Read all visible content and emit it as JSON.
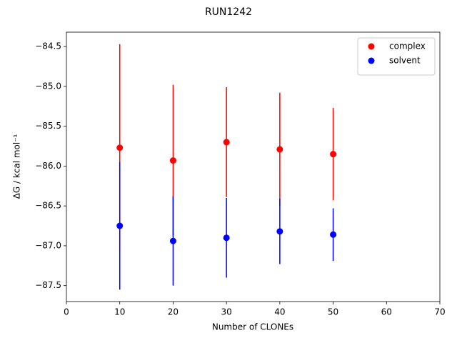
{
  "chart_data": {
    "type": "errorbar",
    "title": "RUN1242",
    "x_label": "Number of CLONEs",
    "y_label": "ΔG / kcal mol⁻¹",
    "x": [
      10,
      20,
      30,
      40,
      50
    ],
    "series": [
      {
        "name": "complex",
        "color": "#ff0000",
        "values": [
          -85.77,
          -85.93,
          -85.7,
          -85.79,
          -85.85
        ],
        "errors": [
          1.3,
          0.95,
          0.69,
          0.71,
          0.58
        ]
      },
      {
        "name": "solvent",
        "color": "#0000ff",
        "values": [
          -86.75,
          -86.94,
          -86.9,
          -86.82,
          -86.86
        ],
        "errors": [
          0.8,
          0.56,
          0.5,
          0.41,
          0.33
        ]
      }
    ],
    "xlim": [
      0,
      70
    ],
    "xticks": [
      0,
      10,
      20,
      30,
      40,
      50,
      60,
      70
    ],
    "ylim": [
      -87.7,
      -84.32
    ],
    "yticks": [
      {
        "value": -87.5,
        "label": "−87.5"
      },
      {
        "value": -87.0,
        "label": "−87.0"
      },
      {
        "value": -86.5,
        "label": "−86.5"
      },
      {
        "value": -86.0,
        "label": "−86.0"
      },
      {
        "value": -85.5,
        "label": "−85.5"
      },
      {
        "value": -85.0,
        "label": "−85.0"
      },
      {
        "value": -84.5,
        "label": "−84.5"
      }
    ],
    "grid": false,
    "legend": "upper right"
  }
}
